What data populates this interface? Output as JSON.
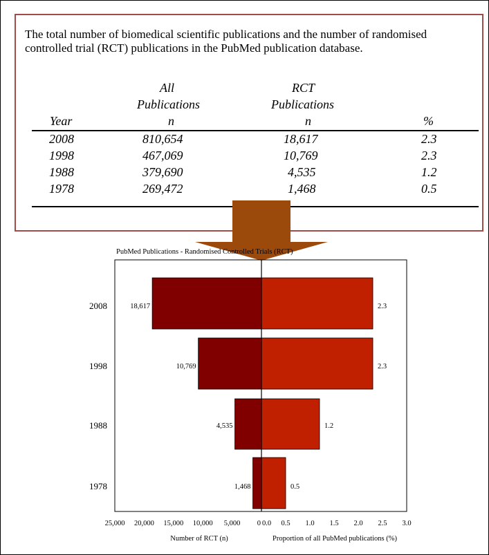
{
  "table": {
    "caption": "The total number of biomedical scientific publications and the number of randomised controlled trial (RCT) publications in the PubMed publication database.",
    "headers": {
      "all_line1": "All",
      "all_line2": "Publications",
      "rct_line1": "RCT",
      "rct_line2": "Publications",
      "year": "Year",
      "all_n": "n",
      "rct_n": "n",
      "pct": "%"
    },
    "rows": [
      {
        "year": "2008",
        "all": "810,654",
        "rct": "18,617",
        "pct": "2.3"
      },
      {
        "year": "1998",
        "all": "467,069",
        "rct": "10,769",
        "pct": "2.3"
      },
      {
        "year": "1988",
        "all": "379,690",
        "rct": "4,535",
        "pct": "1.2"
      },
      {
        "year": "1978",
        "all": "269,472",
        "rct": "1,468",
        "pct": "0.5"
      }
    ]
  },
  "colors": {
    "box_border": "#a14a47",
    "arrow": "#9c4a0b",
    "left_bar": "#800000",
    "right_bar": "#c02000"
  },
  "chart_data": {
    "type": "bar",
    "title": "PubMed Publications - Randomised Controlled Trials (RCT)",
    "categories": [
      "2008",
      "1998",
      "1988",
      "1978"
    ],
    "series": [
      {
        "values": [
          18617,
          10769,
          4535,
          1468
        ],
        "labels": [
          "18,617",
          "10,769",
          "4,535",
          "1,468"
        ]
      },
      {
        "values": [
          2.3,
          2.3,
          1.2,
          0.5
        ],
        "labels": [
          "2.3",
          "2.3",
          "1.2",
          "0.5"
        ]
      }
    ],
    "left_axis": {
      "label": "Number of RCT (n)",
      "range": [
        25000,
        0
      ],
      "ticks": [
        "25,000",
        "20,000",
        "15,000",
        "10,000",
        "5,000",
        "0"
      ]
    },
    "right_axis": {
      "label": "Proportion of all PubMed publications (%)",
      "range": [
        0,
        3
      ],
      "ticks": [
        "0.0",
        "0.5",
        "1.0",
        "1.5",
        "2.0",
        "2.5",
        "3.0"
      ]
    },
    "grid": false,
    "legend": "none"
  }
}
